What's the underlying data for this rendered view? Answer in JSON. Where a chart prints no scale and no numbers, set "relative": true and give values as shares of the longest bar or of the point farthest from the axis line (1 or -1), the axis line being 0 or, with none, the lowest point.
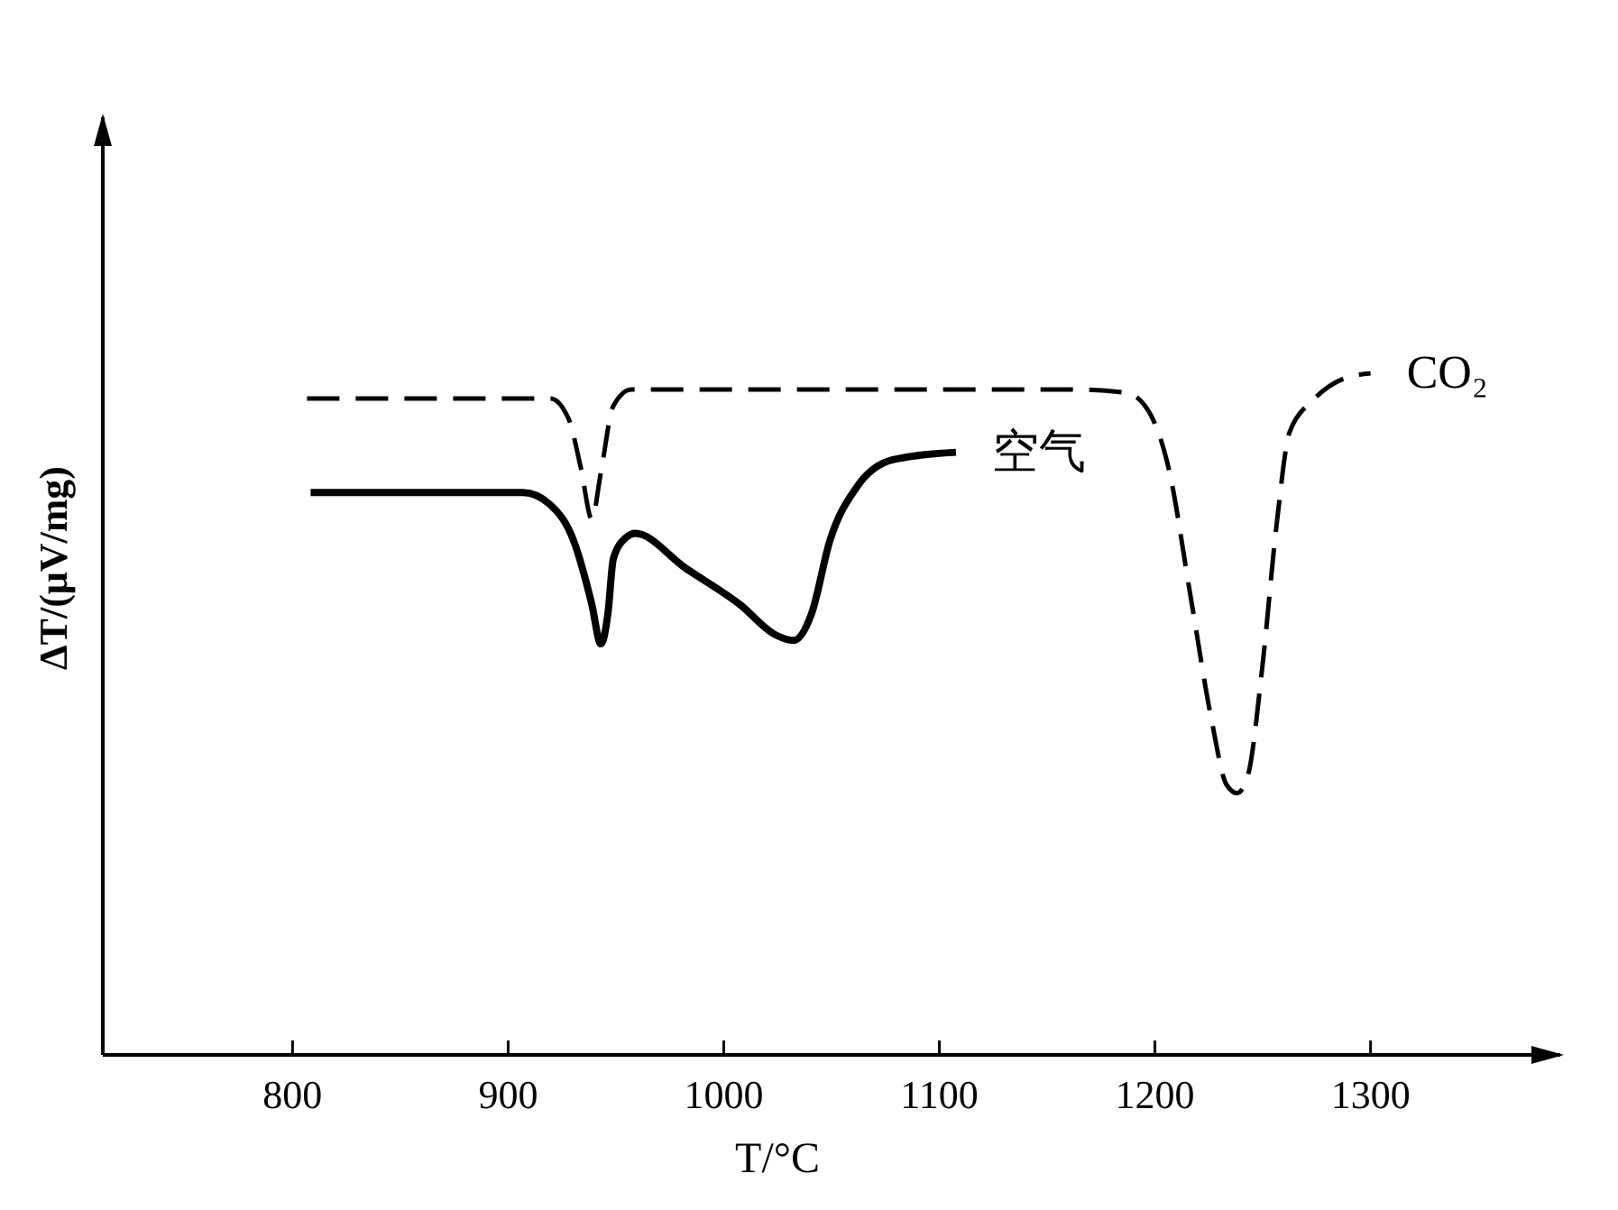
{
  "chart_data": {
    "type": "line",
    "relative": true,
    "xlabel": "T/°C",
    "ylabel": "ΔT/(μV/mg)",
    "xlim": [
      712,
      1388
    ],
    "xticks": [
      800,
      900,
      1000,
      1100,
      1200,
      1300
    ],
    "grid": false,
    "series": [
      {
        "name": "空气",
        "color": "#000000",
        "line_style": "solid",
        "x": [
          808.4,
          907,
          919.6,
          930.4,
          938.8,
          943,
          946.3,
          948.8,
          954.7,
          958.9,
          982.3,
          1007.4,
          1024.1,
          1032.4,
          1040.8,
          1049.2,
          1061.7,
          1078.4,
          1107.7
        ],
        "values": [
          0.825,
          0.825,
          0.807,
          0.754,
          0.661,
          0.603,
          0.648,
          0.728,
          0.759,
          0.765,
          0.714,
          0.661,
          0.616,
          0.608,
          0.648,
          0.754,
          0.833,
          0.873,
          0.884
        ]
      },
      {
        "name": "CO₂",
        "color": "#000000",
        "line_style": "dashed",
        "x": [
          806.7,
          919.6,
          927.9,
          933.8,
          938.8,
          943,
          948.8,
          957.2,
          1166.2,
          1187.1,
          1198,
          1206.4,
          1216.4,
          1226.4,
          1233.1,
          1238.1,
          1243.1,
          1249.8,
          1256.5,
          1262.4,
          1273.2,
          1287.5,
          1300
        ],
        "values": [
          0.963,
          0.963,
          0.934,
          0.86,
          0.786,
          0.854,
          0.952,
          0.976,
          0.976,
          0.971,
          0.939,
          0.86,
          0.675,
          0.489,
          0.397,
          0.384,
          0.41,
          0.569,
          0.78,
          0.913,
          0.96,
          0.992,
          1
        ]
      }
    ]
  }
}
